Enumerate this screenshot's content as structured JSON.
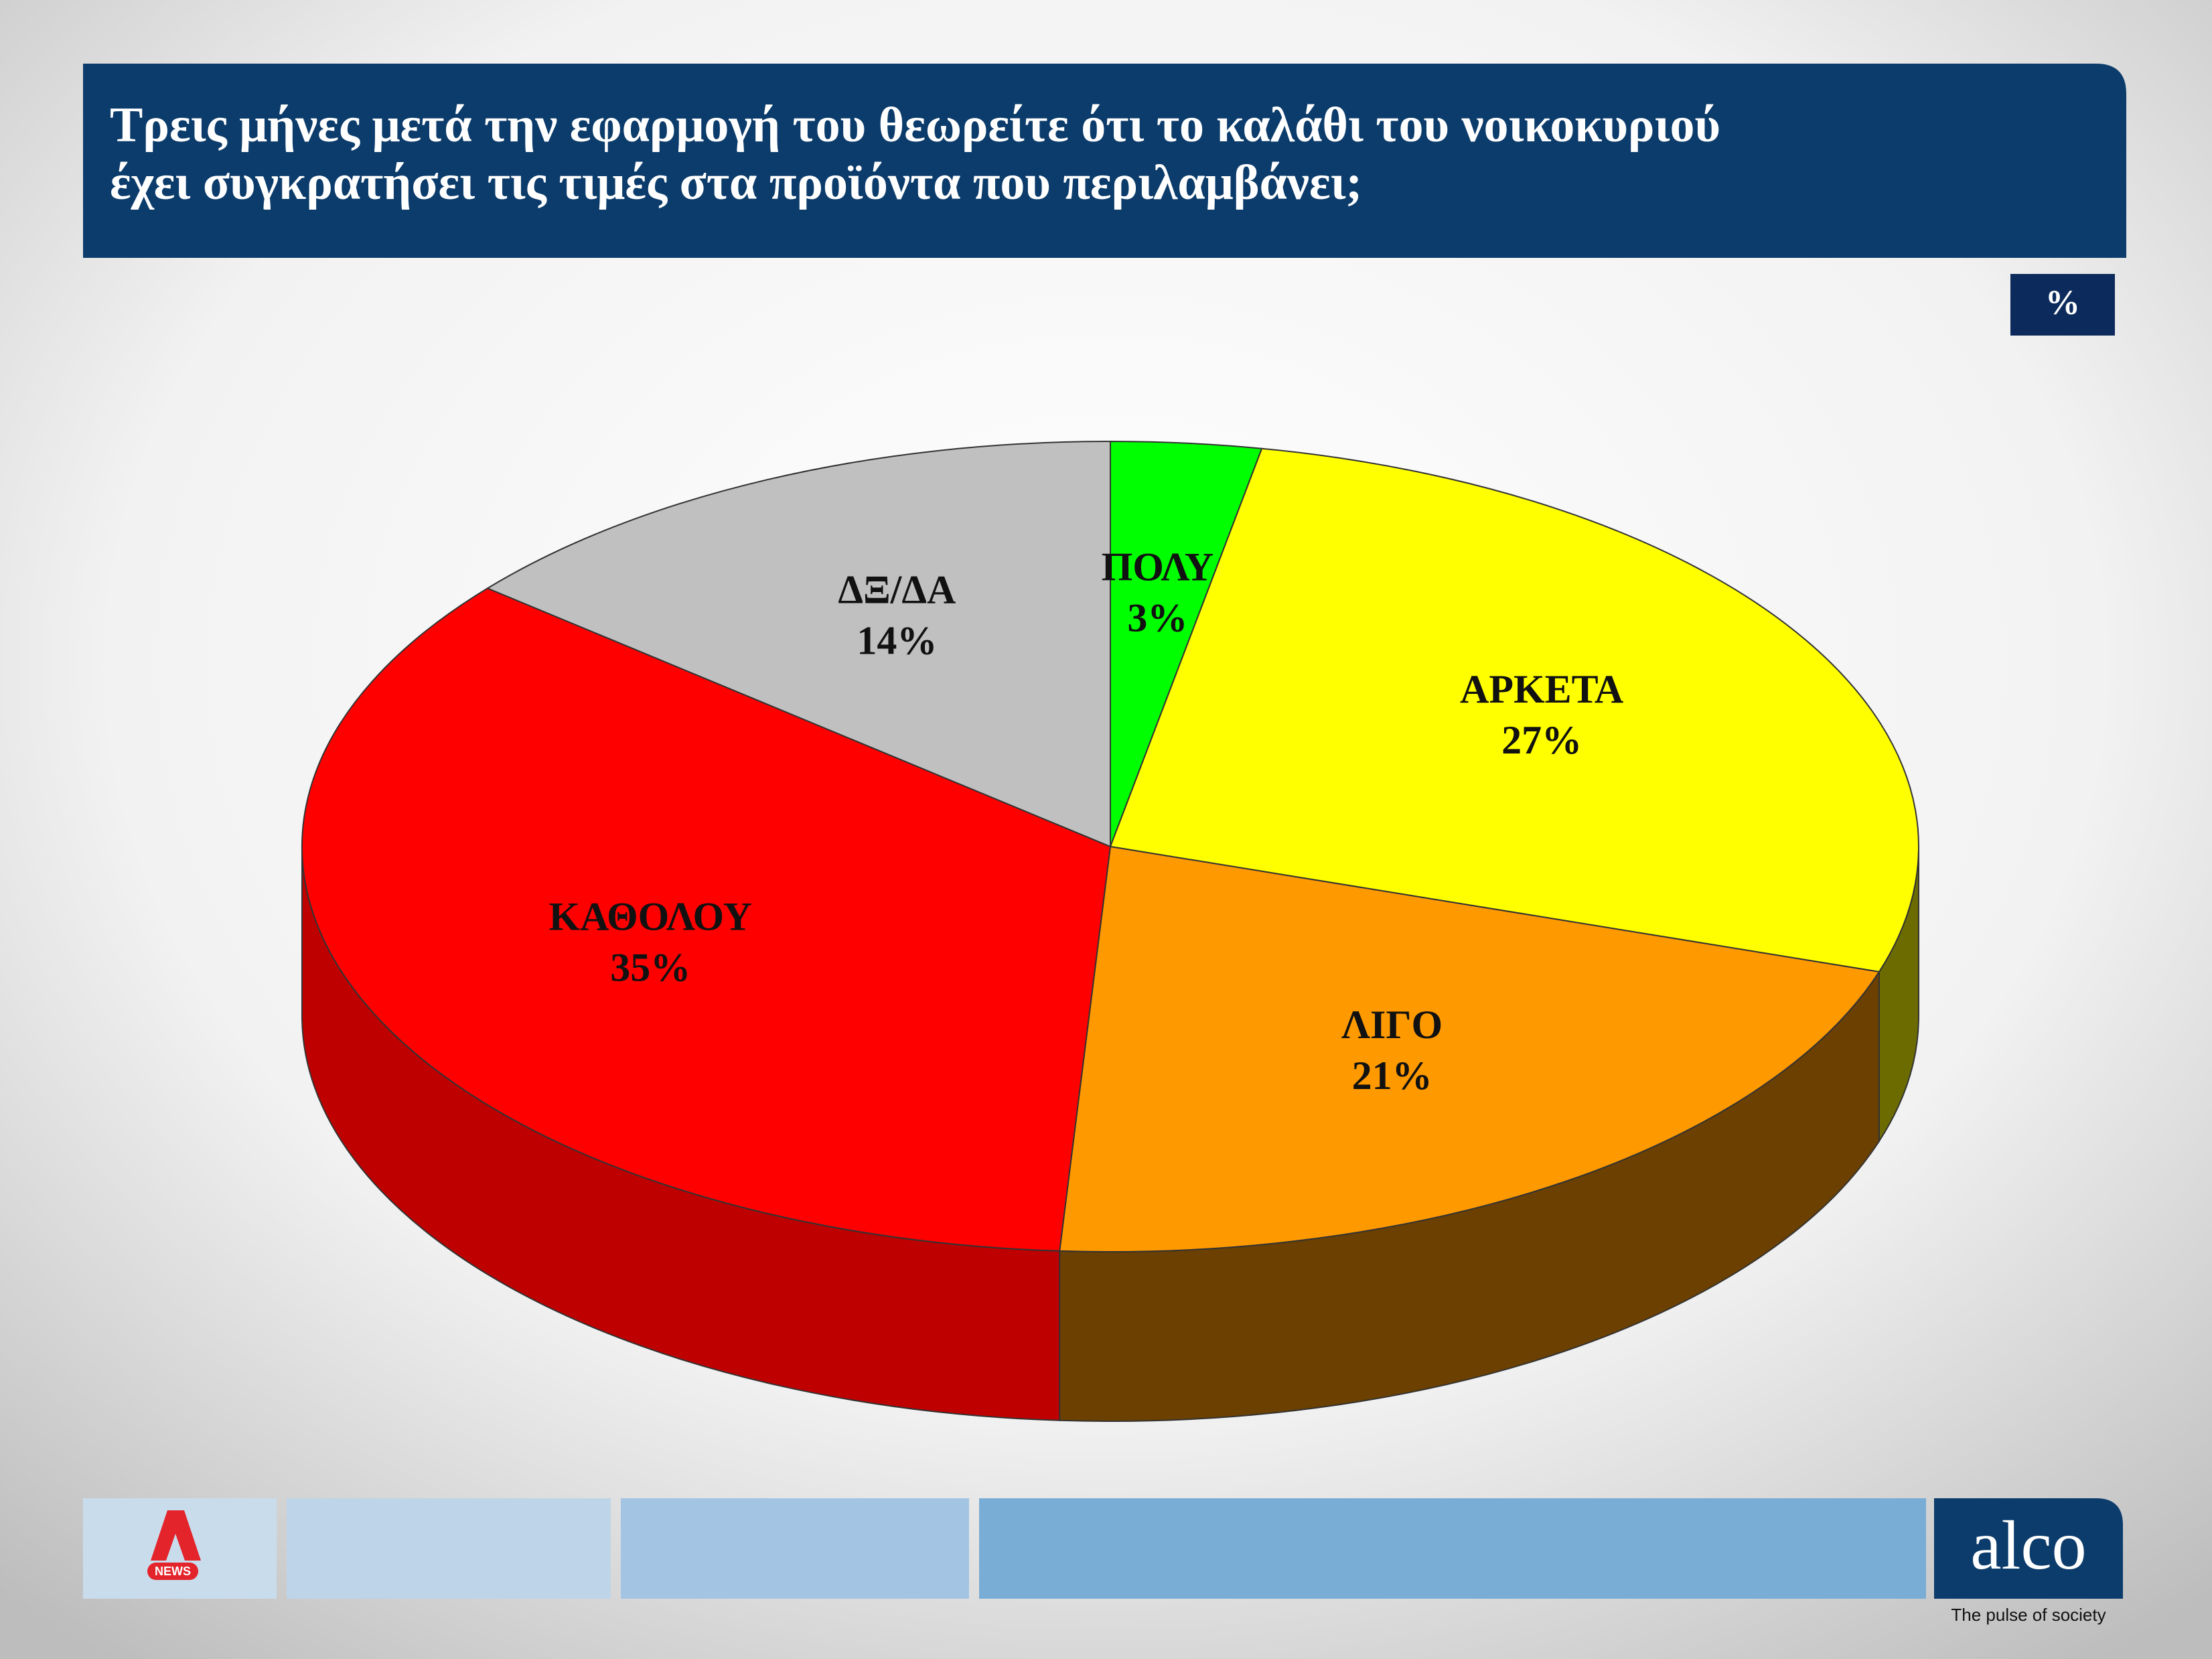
{
  "chart_data": {
    "type": "pie",
    "title": "Τρεις μήνες μετά την εφαρμογή του θεωρείτε ότι το καλάθι του νοικοκυριού\nέχει συγκρατήσει τις τιμές στα προϊόντα που περιλαμβάνει;",
    "unit": "%",
    "categories": [
      "ΠΟΛΥ",
      "ΑΡΚΕΤΑ",
      "ΛΙΓΟ",
      "ΚΑΘΟΛΟΥ",
      "ΔΞ/ΔΑ"
    ],
    "values": [
      3,
      27,
      21,
      35,
      14
    ],
    "value_labels": [
      "3%",
      "27%",
      "21%",
      "35%",
      "14%"
    ],
    "colors": [
      "#00ff00",
      "#ffff00",
      "#ff9900",
      "#ff0000",
      "#c0c0c0"
    ]
  },
  "footer": {
    "news_logo": "NEWS",
    "brand": "alco",
    "tagline": "The pulse of society"
  }
}
